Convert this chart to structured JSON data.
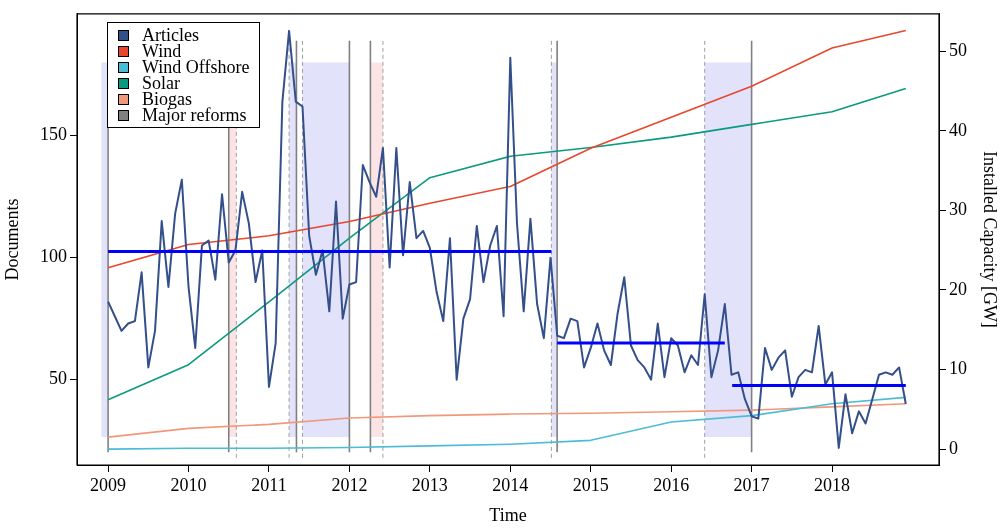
{
  "chart_data": {
    "type": "line",
    "xlabel": "Time",
    "ylabel": "Documents",
    "y2label": "Installed Capacity [GW]",
    "xlim": [
      "2008-08-12",
      "2019-04-30"
    ],
    "xticks": [
      "2009",
      "2010",
      "2011",
      "2012",
      "2013",
      "2014",
      "2015",
      "2016",
      "2017",
      "2018"
    ],
    "ylim": [
      15,
      200
    ],
    "yticks": [
      50,
      100,
      150
    ],
    "y2lim": [
      -2,
      54.7
    ],
    "y2ticks": [
      0,
      10,
      20,
      30,
      40,
      50
    ],
    "grid": false,
    "legend": "top left",
    "marker": "none",
    "line_style": "solid",
    "series": [
      {
        "name": "Articles",
        "color": "#34508a",
        "x": [
          "2009-01",
          "2009-02",
          "2009-03",
          "2009-04",
          "2009-05",
          "2009-06",
          "2009-07",
          "2009-08",
          "2009-09",
          "2009-10",
          "2009-11",
          "2009-12",
          "2010-01",
          "2010-02",
          "2010-03",
          "2010-04",
          "2010-05",
          "2010-06",
          "2010-07",
          "2010-08",
          "2010-09",
          "2010-10",
          "2010-11",
          "2010-12",
          "2011-01",
          "2011-02",
          "2011-03",
          "2011-04",
          "2011-05",
          "2011-06",
          "2011-07",
          "2011-08",
          "2011-09",
          "2011-10",
          "2011-11",
          "2011-12",
          "2012-01",
          "2012-02",
          "2012-03",
          "2012-04",
          "2012-05",
          "2012-06",
          "2012-07",
          "2012-08",
          "2012-09",
          "2012-10",
          "2012-11",
          "2012-12",
          "2013-01",
          "2013-02",
          "2013-03",
          "2013-04",
          "2013-05",
          "2013-06",
          "2013-07",
          "2013-08",
          "2013-09",
          "2013-10",
          "2013-11",
          "2013-12",
          "2014-01",
          "2014-02",
          "2014-03",
          "2014-04",
          "2014-05",
          "2014-06",
          "2014-07",
          "2014-08",
          "2014-09",
          "2014-10",
          "2014-11",
          "2014-12",
          "2015-01",
          "2015-02",
          "2015-03",
          "2015-04",
          "2015-05",
          "2015-06",
          "2015-07",
          "2015-08",
          "2015-09",
          "2015-10",
          "2015-11",
          "2015-12",
          "2016-01",
          "2016-02",
          "2016-03",
          "2016-04",
          "2016-05",
          "2016-06",
          "2016-07",
          "2016-08",
          "2016-09",
          "2016-10",
          "2016-11",
          "2016-12",
          "2017-01",
          "2017-02",
          "2017-03",
          "2017-04",
          "2017-05",
          "2017-06",
          "2017-07",
          "2017-08",
          "2017-09",
          "2017-10",
          "2017-11",
          "2017-12",
          "2018-01",
          "2018-02",
          "2018-03",
          "2018-04",
          "2018-05",
          "2018-06",
          "2018-07",
          "2018-08",
          "2018-09",
          "2018-10",
          "2018-11",
          "2018-12"
        ],
        "values": [
          82,
          76,
          70,
          73,
          74,
          94,
          55,
          70,
          115,
          88,
          118,
          132,
          88,
          63,
          105,
          107,
          91,
          126,
          98,
          103,
          127,
          114,
          90,
          103,
          47,
          65,
          164,
          193,
          164,
          162,
          109,
          93,
          103,
          78,
          123,
          75,
          89,
          90,
          138,
          131,
          125,
          145,
          96,
          145,
          101,
          131,
          108,
          111,
          104,
          86,
          74,
          108,
          50,
          75,
          83,
          113,
          90,
          105,
          113,
          76,
          182,
          114,
          78,
          116,
          81,
          67,
          100,
          68,
          67,
          75,
          74,
          55,
          63,
          73,
          62,
          56,
          77,
          92,
          64,
          58,
          55,
          50,
          73,
          51,
          67,
          64,
          53,
          60,
          56,
          85,
          51,
          62,
          81,
          52,
          53,
          42,
          35,
          34,
          63,
          54,
          59,
          62,
          43,
          51,
          54,
          53,
          72,
          48,
          53,
          22,
          44,
          28,
          37,
          32,
          42,
          52,
          53,
          52,
          55,
          40
        ]
      },
      {
        "name": "Wind",
        "color": "#e8472e",
        "axis": "y2",
        "x": [
          "2009",
          "2010",
          "2011",
          "2012",
          "2013",
          "2014",
          "2015",
          "2016",
          "2017",
          "2018",
          "2018-12"
        ],
        "values": [
          22.8,
          25.7,
          26.8,
          28.6,
          30.9,
          33.0,
          37.8,
          41.7,
          45.6,
          50.4,
          52.6
        ]
      },
      {
        "name": "Wind Offshore",
        "color": "#4bbcd6",
        "axis": "y2",
        "x": [
          "2009",
          "2010",
          "2011",
          "2012",
          "2013",
          "2014",
          "2015",
          "2016",
          "2017",
          "2018",
          "2018-12"
        ],
        "values": [
          0.0,
          0.1,
          0.1,
          0.2,
          0.4,
          0.6,
          1.1,
          3.4,
          4.2,
          5.7,
          6.5
        ]
      },
      {
        "name": "Solar",
        "color": "#0a9a7e",
        "axis": "y2",
        "x": [
          "2009",
          "2010",
          "2011",
          "2012",
          "2013",
          "2014",
          "2015",
          "2016",
          "2017",
          "2018",
          "2018-12"
        ],
        "values": [
          6.2,
          10.6,
          18.5,
          26.5,
          34.1,
          36.8,
          37.9,
          39.2,
          40.8,
          42.4,
          45.3
        ]
      },
      {
        "name": "Biogas",
        "color": "#f0987a",
        "axis": "y2",
        "x": [
          "2009",
          "2010",
          "2011",
          "2012",
          "2013",
          "2014",
          "2015",
          "2016",
          "2017",
          "2018",
          "2018-12"
        ],
        "values": [
          1.5,
          2.6,
          3.1,
          3.9,
          4.2,
          4.4,
          4.5,
          4.7,
          4.9,
          5.3,
          5.7
        ]
      },
      {
        "color": "#0000ff",
        "x": [
          "2009-01",
          "2014-07-05"
        ],
        "values": [
          102.5,
          102.5
        ]
      },
      {
        "color": "#0000ff",
        "x": [
          "2014-07-31",
          "2016-09-01"
        ],
        "values": [
          65,
          65
        ]
      },
      {
        "color": "#0000ff",
        "x": [
          "2016-10-04",
          "2018-12"
        ],
        "values": [
          47.6,
          47.6
        ]
      }
    ],
    "ref_lines": [
      {
        "axis": "x",
        "value": "2009-01-01",
        "label": "Major reforms",
        "color": "#808080",
        "line_style": "solid"
      },
      {
        "axis": "x",
        "value": "2010-07-01",
        "color": "#808080",
        "line_style": "solid"
      },
      {
        "axis": "x",
        "value": "2010-08-05",
        "color": "#a0a0a0",
        "line_style": "dashed"
      },
      {
        "axis": "x",
        "value": "2011-04-01",
        "color": "#a0a0a0",
        "line_style": "dashed"
      },
      {
        "axis": "x",
        "value": "2011-05-04",
        "color": "#808080",
        "line_style": "solid"
      },
      {
        "axis": "x",
        "value": "2011-06-01",
        "color": "#a0a0a0",
        "line_style": "dashed"
      },
      {
        "axis": "x",
        "value": "2012-01-01",
        "color": "#808080",
        "line_style": "solid"
      },
      {
        "axis": "x",
        "value": "2012-04-05",
        "color": "#808080",
        "line_style": "solid"
      },
      {
        "axis": "x",
        "value": "2012-06-01",
        "color": "#a0a0a0",
        "line_style": "dashed"
      },
      {
        "axis": "x",
        "value": "2014-07-05",
        "color": "#a0a0a0",
        "line_style": "dashed"
      },
      {
        "axis": "x",
        "value": "2014-07-31",
        "color": "#808080",
        "line_style": "solid"
      },
      {
        "axis": "x",
        "value": "2016-06-01",
        "color": "#a0a0a0",
        "line_style": "dashed"
      },
      {
        "axis": "x",
        "value": "2017-01-01",
        "color": "#808080",
        "line_style": "solid"
      }
    ],
    "bands": [
      {
        "axis": "x",
        "from": "2008-12-01",
        "to": "2009-01-01",
        "color": "#e2e2fb"
      },
      {
        "axis": "x",
        "from": "2010-07-01",
        "to": "2010-08-05",
        "color": "#fde4e4"
      },
      {
        "axis": "x",
        "from": "2011-04-01",
        "to": "2011-05-04",
        "color": "#e2e2fb"
      },
      {
        "axis": "x",
        "from": "2011-06-01",
        "to": "2012-01-01",
        "color": "#e2e2fb"
      },
      {
        "axis": "x",
        "from": "2012-04-05",
        "to": "2012-06-01",
        "color": "#fde4e4"
      },
      {
        "axis": "x",
        "from": "2014-07-05",
        "to": "2014-07-31",
        "color": "#e2e2fb"
      },
      {
        "axis": "x",
        "from": "2016-06-01",
        "to": "2017-01-01",
        "color": "#e2e2fb"
      }
    ]
  }
}
